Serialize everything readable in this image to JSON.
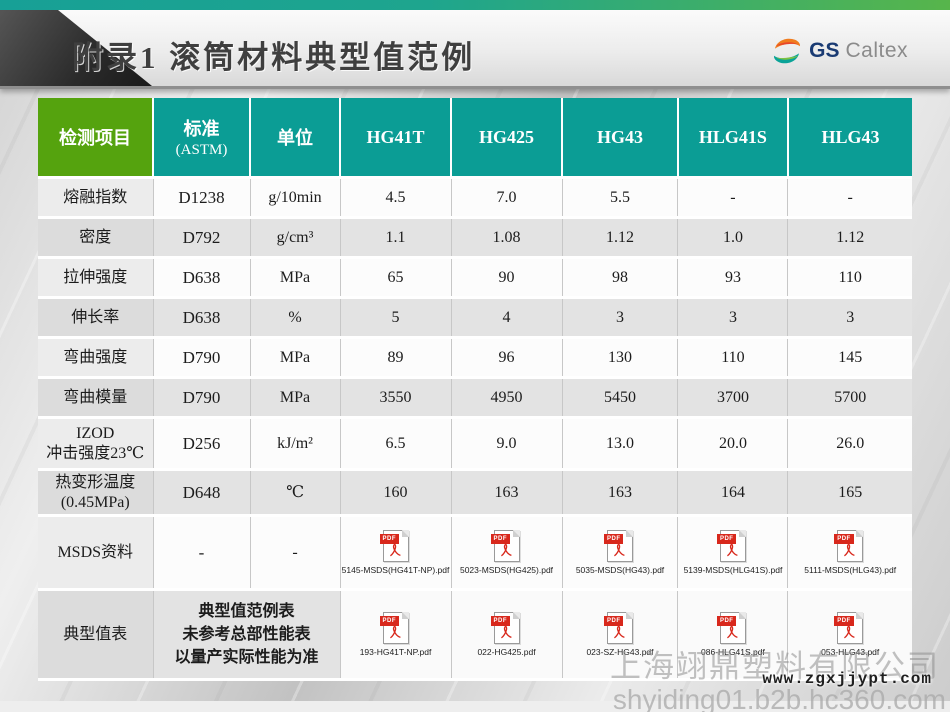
{
  "header": {
    "title": "附录1 滚筒材料典型值范例",
    "logo": {
      "gs": "GS",
      "caltex": "Caltex"
    }
  },
  "colors": {
    "topbar_left": "#17a096",
    "topbar_right": "#57b54b",
    "header_teal": "#0b9d95",
    "header_green": "#55a30e",
    "pdf_red": "#d8281c"
  },
  "icons": {
    "pdf_badge_label": "PDF"
  },
  "table": {
    "columns": [
      {
        "label": "检测项目",
        "sub": ""
      },
      {
        "label": "标准",
        "sub": "(ASTM)"
      },
      {
        "label": "单位",
        "sub": ""
      },
      {
        "label": "HG41T",
        "sub": ""
      },
      {
        "label": "HG425",
        "sub": ""
      },
      {
        "label": "HG43",
        "sub": ""
      },
      {
        "label": "HLG41S",
        "sub": ""
      },
      {
        "label": "HLG43",
        "sub": ""
      }
    ],
    "col_widths": [
      "13.16%",
      "11.10%",
      "10.30%",
      "12.70%",
      "12.70%",
      "13.27%",
      "12.58%",
      "14.19%"
    ],
    "rows": [
      {
        "item": "熔融指数",
        "std": "D1238",
        "unit": "g/10min",
        "values": [
          "4.5",
          "7.0",
          "5.5",
          "-",
          "-"
        ]
      },
      {
        "item": "密度",
        "std": "D792",
        "unit": "g/cm³",
        "values": [
          "1.1",
          "1.08",
          "1.12",
          "1.0",
          "1.12"
        ]
      },
      {
        "item": "拉伸强度",
        "std": "D638",
        "unit": "MPa",
        "values": [
          "65",
          "90",
          "98",
          "93",
          "110"
        ]
      },
      {
        "item": "伸长率",
        "std": "D638",
        "unit": "%",
        "values": [
          "5",
          "4",
          "3",
          "3",
          "3"
        ]
      },
      {
        "item": "弯曲强度",
        "std": "D790",
        "unit": "MPa",
        "values": [
          "89",
          "96",
          "130",
          "110",
          "145"
        ]
      },
      {
        "item": "弯曲模量",
        "std": "D790",
        "unit": "MPa",
        "values": [
          "3550",
          "4950",
          "5450",
          "3700",
          "5700"
        ]
      },
      {
        "item": "IZOD\n冲击强度23℃",
        "std": "D256",
        "unit": "kJ/m²",
        "values": [
          "6.5",
          "9.0",
          "13.0",
          "20.0",
          "26.0"
        ]
      },
      {
        "item": "热变形温度\n(0.45MPa)",
        "std": "D648",
        "unit": "℃",
        "values": [
          "160",
          "163",
          "163",
          "164",
          "165"
        ]
      }
    ],
    "msds_row": {
      "item": "MSDS资料",
      "std": "-",
      "unit": "-",
      "files": [
        "5145-MSDS(HG41T-NP).pdf",
        "5023-MSDS(HG425).pdf",
        "5035-MSDS(HG43).pdf",
        "5139-MSDS(HLG41S).pdf",
        "5111-MSDS(HLG43).pdf"
      ]
    },
    "typical_row": {
      "item": "典型值表",
      "note": "典型值范例表\n未参考总部性能表\n以量产实际性能为准",
      "files": [
        "193-HG41T-NP.pdf",
        "022-HG425.pdf",
        "023-SZ-HG43.pdf",
        "086-HLG41S.pdf",
        "053-HLG43.pdf"
      ]
    }
  },
  "watermarks": {
    "company": "上海翊鼎塑料有限公司",
    "site": "www.zgxjjypt.com",
    "portal": "shyiding01.b2b.hc360.com"
  }
}
